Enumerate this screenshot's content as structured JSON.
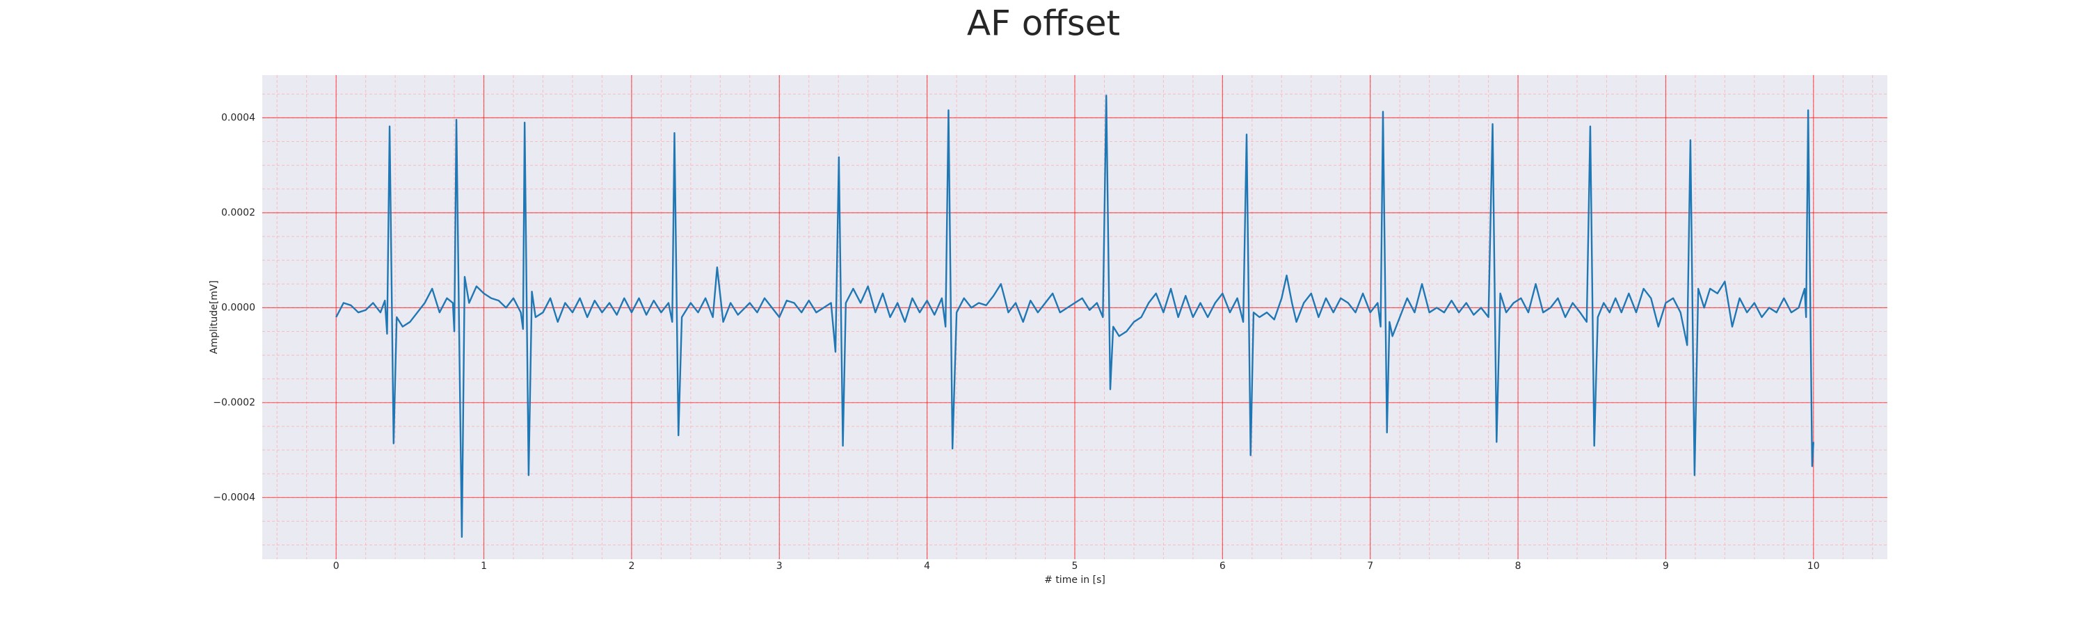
{
  "chart_data": {
    "type": "line",
    "title": "AF offset",
    "x_label": "# time in [s]",
    "y_label": "Amplitude[mV]",
    "color": "#1f77b4",
    "background": "#eaeaf2",
    "grid": true,
    "major_grid_color": "#ff0000",
    "minor_grid_color": "#ffaaaa",
    "xlim": [
      -0.5,
      10.5
    ],
    "ylim": [
      -0.00053,
      0.00049
    ],
    "xticks": [
      0,
      1,
      2,
      3,
      4,
      5,
      6,
      7,
      8,
      9,
      10
    ],
    "yticks": [
      {
        "value": -0.0004,
        "label": "−0.0004"
      },
      {
        "value": -0.0002,
        "label": "−0.0002"
      },
      {
        "value": 0,
        "label": "0.0000"
      },
      0.0002,
      0.0004
    ],
    "xminorticks": [
      -0.4,
      -0.2,
      0,
      0.2,
      0.4,
      0.6,
      0.8,
      1,
      1.2,
      1.4,
      1.6,
      1.8,
      2,
      2.2,
      2.4,
      2.6,
      2.8,
      3,
      3.2,
      3.4,
      3.6,
      3.8,
      4,
      4.2,
      4.4,
      4.6,
      4.8,
      5,
      5.2,
      5.4,
      5.6,
      5.8,
      6,
      6.2,
      6.4,
      6.6,
      6.8,
      7,
      7.2,
      7.4,
      7.6,
      7.8,
      8,
      8.2,
      8.4,
      8.6,
      8.8,
      9,
      9.2,
      9.4,
      9.6,
      9.8,
      10,
      10.2,
      10.4
    ],
    "yminorticks": [
      -0.0005,
      -0.00045,
      -0.0004,
      -0.00035,
      -0.0003,
      -0.00025,
      -0.0002,
      -0.00015,
      -0.0001,
      -5e-05,
      0,
      5e-05,
      0.0001,
      0.00015,
      0.0002,
      0.00025,
      0.0003,
      0.00035,
      0.0004,
      0.00045
    ],
    "x": [
      0.0,
      0.05,
      0.1,
      0.15,
      0.2,
      0.25,
      0.3,
      0.33,
      0.345,
      0.362,
      0.389,
      0.41,
      0.45,
      0.5,
      0.55,
      0.6,
      0.65,
      0.7,
      0.75,
      0.79,
      0.8,
      0.814,
      0.851,
      0.87,
      0.9,
      0.95,
      1.0,
      1.05,
      1.1,
      1.15,
      1.2,
      1.25,
      1.265,
      1.276,
      1.303,
      1.325,
      1.35,
      1.4,
      1.45,
      1.5,
      1.55,
      1.6,
      1.65,
      1.7,
      1.75,
      1.8,
      1.85,
      1.9,
      1.95,
      2.0,
      2.05,
      2.1,
      2.15,
      2.2,
      2.25,
      2.275,
      2.29,
      2.317,
      2.34,
      2.4,
      2.45,
      2.5,
      2.55,
      2.579,
      2.62,
      2.67,
      2.72,
      2.8,
      2.85,
      2.9,
      2.95,
      3.0,
      3.05,
      3.1,
      3.15,
      3.2,
      3.25,
      3.3,
      3.35,
      3.38,
      3.403,
      3.43,
      3.45,
      3.5,
      3.55,
      3.6,
      3.65,
      3.7,
      3.75,
      3.8,
      3.85,
      3.9,
      3.95,
      4.0,
      4.05,
      4.1,
      4.125,
      4.145,
      4.172,
      4.2,
      4.25,
      4.3,
      4.35,
      4.4,
      4.45,
      4.5,
      4.55,
      4.6,
      4.65,
      4.7,
      4.75,
      4.8,
      4.85,
      4.9,
      4.95,
      5.0,
      5.05,
      5.1,
      5.15,
      5.19,
      5.213,
      5.24,
      5.26,
      5.3,
      5.35,
      5.4,
      5.45,
      5.5,
      5.55,
      5.6,
      5.65,
      5.7,
      5.75,
      5.8,
      5.85,
      5.9,
      5.95,
      6.0,
      6.05,
      6.1,
      6.14,
      6.163,
      6.19,
      6.21,
      6.25,
      6.3,
      6.35,
      6.4,
      6.434,
      6.47,
      6.5,
      6.55,
      6.6,
      6.65,
      6.7,
      6.75,
      6.8,
      6.85,
      6.9,
      6.95,
      7.0,
      7.05,
      7.07,
      7.086,
      7.113,
      7.13,
      7.15,
      7.2,
      7.25,
      7.3,
      7.35,
      7.4,
      7.45,
      7.5,
      7.55,
      7.6,
      7.65,
      7.7,
      7.75,
      7.8,
      7.828,
      7.855,
      7.88,
      7.92,
      7.97,
      8.02,
      8.07,
      8.12,
      8.17,
      8.22,
      8.27,
      8.32,
      8.37,
      8.42,
      8.465,
      8.489,
      8.516,
      8.54,
      8.58,
      8.62,
      8.66,
      8.7,
      8.75,
      8.8,
      8.85,
      8.9,
      8.95,
      9.0,
      9.05,
      9.1,
      9.145,
      9.167,
      9.195,
      9.22,
      9.26,
      9.3,
      9.35,
      9.4,
      9.45,
      9.5,
      9.55,
      9.6,
      9.65,
      9.7,
      9.75,
      9.8,
      9.85,
      9.9,
      9.94,
      9.95,
      9.964,
      9.991,
      10.0
    ],
    "values": [
      -2e-05,
      1e-05,
      5e-06,
      -1e-05,
      -5e-06,
      1e-05,
      -1e-05,
      1.5e-05,
      -5.5e-05,
      0.000382,
      -0.000286,
      -2e-05,
      -4e-05,
      -3e-05,
      -1e-05,
      1e-05,
      4e-05,
      -1e-05,
      2e-05,
      1e-05,
      -5e-05,
      0.000396,
      -0.000483,
      6.5e-05,
      1e-05,
      4.5e-05,
      3e-05,
      2e-05,
      1.5e-05,
      0,
      2e-05,
      -1e-05,
      -4.5e-05,
      0.00039,
      -0.000353,
      3.4e-05,
      -2e-05,
      -1e-05,
      2e-05,
      -3e-05,
      1e-05,
      -1e-05,
      2e-05,
      -2e-05,
      1.5e-05,
      -1e-05,
      1e-05,
      -1.5e-05,
      2e-05,
      -1e-05,
      2e-05,
      -1.5e-05,
      1.5e-05,
      -1e-05,
      1e-05,
      -3e-05,
      0.000368,
      -0.000269,
      -2e-05,
      1e-05,
      -1e-05,
      2e-05,
      -2e-05,
      8.5e-05,
      -3e-05,
      1e-05,
      -1.5e-05,
      1e-05,
      -1e-05,
      2e-05,
      0,
      -2e-05,
      1.5e-05,
      1e-05,
      -1e-05,
      1.5e-05,
      -1e-05,
      0,
      1e-05,
      -9.3e-05,
      0.000317,
      -0.000291,
      1e-05,
      4e-05,
      1e-05,
      4.5e-05,
      -1e-05,
      3e-05,
      -2e-05,
      1e-05,
      -3e-05,
      2e-05,
      -1e-05,
      1.5e-05,
      -1.5e-05,
      2e-05,
      -4e-05,
      0.000416,
      -0.000297,
      -1e-05,
      2e-05,
      0,
      1e-05,
      5e-06,
      2.5e-05,
      5e-05,
      -1e-05,
      1e-05,
      -3e-05,
      1.5e-05,
      -1e-05,
      1e-05,
      3e-05,
      -1e-05,
      0,
      1e-05,
      2e-05,
      -5e-06,
      1e-05,
      -2e-05,
      0.000447,
      -0.000172,
      -4e-05,
      -6e-05,
      -5e-05,
      -3e-05,
      -2e-05,
      1e-05,
      3e-05,
      -1e-05,
      4e-05,
      -2e-05,
      2.5e-05,
      -2e-05,
      1e-05,
      -2e-05,
      1e-05,
      3e-05,
      -1e-05,
      2e-05,
      -3e-05,
      0.000365,
      -0.000311,
      -1e-05,
      -2e-05,
      -1e-05,
      -2.5e-05,
      2e-05,
      6.8e-05,
      1e-05,
      -3e-05,
      1e-05,
      3e-05,
      -2e-05,
      2e-05,
      -1e-05,
      2e-05,
      1e-05,
      -1e-05,
      3e-05,
      -1e-05,
      1e-05,
      -4e-05,
      0.000413,
      -0.000263,
      -3e-05,
      -6e-05,
      -2e-05,
      2e-05,
      -1e-05,
      5e-05,
      -1e-05,
      0,
      -1e-05,
      1.5e-05,
      -1e-05,
      1e-05,
      -1.5e-05,
      0,
      -2e-05,
      0.000387,
      -0.000283,
      3e-05,
      -1e-05,
      1e-05,
      2e-05,
      -1e-05,
      5e-05,
      -1e-05,
      0,
      2e-05,
      -2e-05,
      1e-05,
      -1e-05,
      -3e-05,
      0.000382,
      -0.000291,
      -2e-05,
      1e-05,
      -1e-05,
      2e-05,
      -1e-05,
      3e-05,
      -1e-05,
      4e-05,
      2e-05,
      -4e-05,
      1e-05,
      2e-05,
      -1e-05,
      -7.9e-05,
      0.000353,
      -0.000353,
      4e-05,
      0,
      4e-05,
      3e-05,
      5.5e-05,
      -4e-05,
      2e-05,
      -1e-05,
      1e-05,
      -2e-05,
      0,
      -1e-05,
      2e-05,
      -1e-05,
      0,
      4e-05,
      -2e-05,
      0.000416,
      -0.000334,
      -0.000283
    ]
  }
}
